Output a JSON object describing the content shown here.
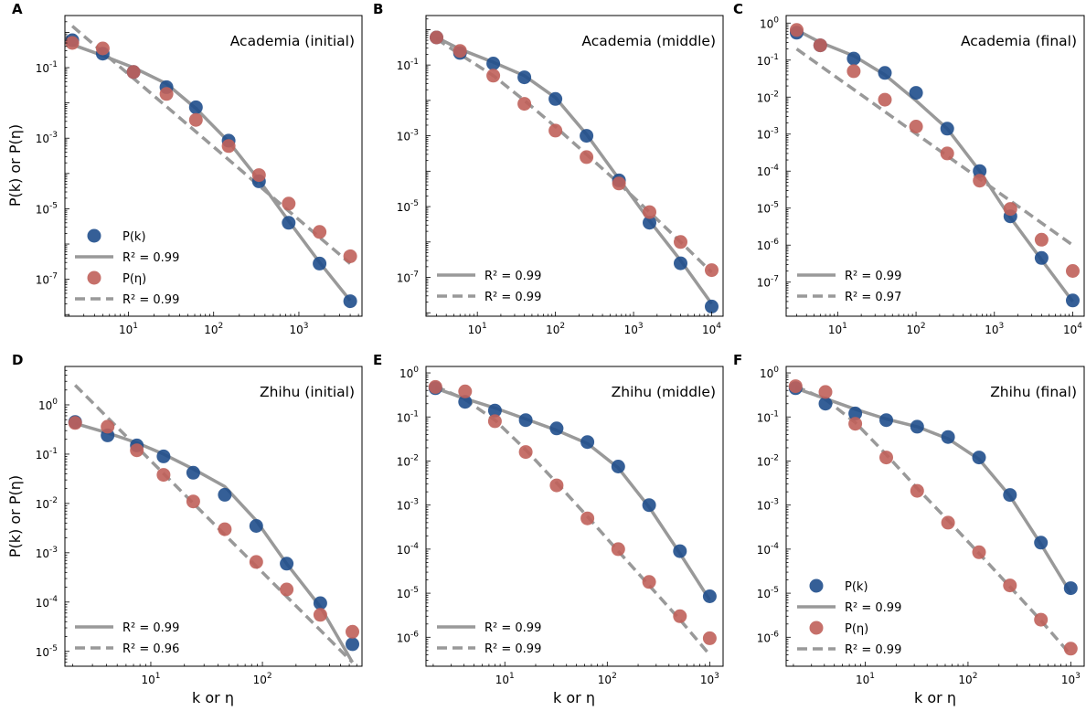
{
  "colors": {
    "pk": "#1f4e8c",
    "peta": "#c0605a",
    "fit": "#999999"
  },
  "x_axis_label": "k or η",
  "y_axis_label": "P(k) or P(η)",
  "chart_data": [
    {
      "type": "scatter",
      "letter": "A",
      "title": "Academia (initial)",
      "xscale": "log",
      "yscale": "log",
      "xlim": [
        1.8,
        5500
      ],
      "ylim": [
        9e-09,
        3
      ],
      "xticks": [
        {
          "label": "10",
          "exp": "1",
          "v": 10
        },
        {
          "label": "10",
          "exp": "2",
          "v": 100
        },
        {
          "label": "10",
          "exp": "3",
          "v": 1000
        }
      ],
      "yticks": [
        {
          "label": "10",
          "exp": "-7",
          "v": 1e-07
        },
        {
          "label": "10",
          "exp": "-5",
          "v": 1e-05
        },
        {
          "label": "10",
          "exp": "-3",
          "v": 0.001
        },
        {
          "label": "10",
          "exp": "-1",
          "v": 0.1
        }
      ],
      "series": [
        {
          "name": "P(k)",
          "color_key": "pk",
          "x": [
            2.2,
            5,
            11.5,
            28,
            62,
            150,
            340,
            760,
            1750,
            4000
          ],
          "y": [
            0.6,
            0.25,
            0.075,
            0.028,
            0.0075,
            0.00085,
            6e-05,
            4e-06,
            2.8e-07,
            2.4e-08
          ]
        },
        {
          "name": "P(η)",
          "color_key": "peta",
          "x": [
            2.2,
            5,
            11.5,
            28,
            62,
            150,
            340,
            760,
            1750,
            4000
          ],
          "y": [
            0.5,
            0.35,
            0.075,
            0.018,
            0.0033,
            0.0006,
            9e-05,
            1.4e-05,
            2.2e-06,
            4.5e-07
          ]
        }
      ],
      "fits": [
        {
          "style": "solid",
          "r2": "0.99",
          "x": [
            2.2,
            5,
            11.5,
            28,
            62,
            150,
            340,
            760,
            1750,
            4000
          ],
          "y": [
            0.45,
            0.22,
            0.1,
            0.035,
            0.007,
            0.0008,
            6.5e-05,
            4.5e-06,
            3e-07,
            2.5e-08
          ]
        },
        {
          "style": "dashed",
          "r2": "0.99",
          "x": [
            2.2,
            4000
          ],
          "y": [
            1.5,
            2.8e-07
          ]
        }
      ],
      "legend": [
        {
          "kind": "marker",
          "color_key": "pk",
          "label": "P(k)"
        },
        {
          "kind": "solid",
          "label": "R² = 0.99"
        },
        {
          "kind": "marker",
          "color_key": "peta",
          "label": "P(η)"
        },
        {
          "kind": "dashed",
          "label": "R² = 0.99"
        }
      ]
    },
    {
      "type": "scatter",
      "letter": "B",
      "title": "Academia (middle)",
      "xscale": "log",
      "yscale": "log",
      "xlim": [
        2.2,
        14000
      ],
      "ylim": [
        8e-09,
        2.5
      ],
      "xticks": [
        {
          "label": "10",
          "exp": "1",
          "v": 10
        },
        {
          "label": "10",
          "exp": "2",
          "v": 100
        },
        {
          "label": "10",
          "exp": "3",
          "v": 1000
        },
        {
          "label": "10",
          "exp": "4",
          "v": 10000
        }
      ],
      "yticks": [
        {
          "label": "10",
          "exp": "-7",
          "v": 1e-07
        },
        {
          "label": "10",
          "exp": "-5",
          "v": 1e-05
        },
        {
          "label": "10",
          "exp": "-3",
          "v": 0.001
        },
        {
          "label": "10",
          "exp": "-1",
          "v": 0.1
        }
      ],
      "series": [
        {
          "name": "P(k)",
          "color_key": "pk",
          "x": [
            3,
            6,
            16,
            40,
            100,
            250,
            650,
            1600,
            4000,
            10000
          ],
          "y": [
            0.6,
            0.22,
            0.11,
            0.045,
            0.011,
            0.001,
            5.5e-05,
            3.5e-06,
            2.5e-07,
            1.5e-08
          ]
        },
        {
          "name": "P(η)",
          "color_key": "peta",
          "x": [
            3,
            6,
            16,
            40,
            100,
            250,
            650,
            1600,
            4000,
            10000
          ],
          "y": [
            0.6,
            0.25,
            0.05,
            0.008,
            0.0014,
            0.00025,
            4.5e-05,
            7e-06,
            1e-06,
            1.6e-07
          ]
        }
      ],
      "fits": [
        {
          "style": "solid",
          "r2": "0.99",
          "x": [
            3,
            6,
            16,
            40,
            100,
            250,
            650,
            1600,
            4000,
            10000
          ],
          "y": [
            0.6,
            0.28,
            0.12,
            0.05,
            0.012,
            0.0011,
            6e-05,
            4e-06,
            3e-07,
            1.8e-08
          ]
        },
        {
          "style": "dashed",
          "r2": "0.99",
          "x": [
            3,
            6,
            16,
            40,
            100,
            250,
            650,
            1600,
            4000,
            10000
          ],
          "y": [
            0.55,
            0.2,
            0.05,
            0.01,
            0.0018,
            0.0003,
            4.5e-05,
            7e-06,
            1e-06,
            1.4e-07
          ]
        }
      ],
      "legend": [
        {
          "kind": "solid",
          "label": "R² = 0.99"
        },
        {
          "kind": "dashed",
          "label": "R² = 0.99"
        }
      ]
    },
    {
      "type": "scatter",
      "letter": "C",
      "title": "Academia (final)",
      "xscale": "log",
      "yscale": "log",
      "xlim": [
        2.2,
        14000
      ],
      "ylim": [
        1.2e-08,
        1.6
      ],
      "xticks": [
        {
          "label": "10",
          "exp": "1",
          "v": 10
        },
        {
          "label": "10",
          "exp": "2",
          "v": 100
        },
        {
          "label": "10",
          "exp": "3",
          "v": 1000
        },
        {
          "label": "10",
          "exp": "4",
          "v": 10000
        }
      ],
      "yticks": [
        {
          "label": "10",
          "exp": "-7",
          "v": 1e-07
        },
        {
          "label": "10",
          "exp": "-6",
          "v": 1e-06
        },
        {
          "label": "10",
          "exp": "-5",
          "v": 1e-05
        },
        {
          "label": "10",
          "exp": "-4",
          "v": 0.0001
        },
        {
          "label": "10",
          "exp": "-3",
          "v": 0.001
        },
        {
          "label": "10",
          "exp": "-2",
          "v": 0.01
        },
        {
          "label": "10",
          "exp": "-1",
          "v": 0.1
        },
        {
          "label": "10",
          "exp": "0",
          "v": 1
        }
      ],
      "series": [
        {
          "name": "P(k)",
          "color_key": "pk",
          "x": [
            3,
            6,
            16,
            40,
            100,
            250,
            650,
            1600,
            4000,
            10000
          ],
          "y": [
            0.55,
            0.25,
            0.11,
            0.045,
            0.013,
            0.0014,
            0.0001,
            6e-06,
            4.5e-07,
            3.2e-08
          ]
        },
        {
          "name": "P(η)",
          "color_key": "peta",
          "x": [
            3,
            6,
            16,
            40,
            100,
            250,
            650,
            1600,
            4000,
            10000
          ],
          "y": [
            0.65,
            0.25,
            0.05,
            0.0085,
            0.0016,
            0.0003,
            5.5e-05,
            9.5e-06,
            1.4e-06,
            2e-07
          ]
        }
      ],
      "fits": [
        {
          "style": "solid",
          "r2": "0.99",
          "x": [
            3,
            6,
            16,
            40,
            100,
            250,
            650,
            1600,
            4000,
            10000
          ],
          "y": [
            0.65,
            0.3,
            0.13,
            0.04,
            0.008,
            0.0014,
            0.0001,
            5.5e-06,
            4e-07,
            3e-08
          ]
        },
        {
          "style": "dashed",
          "r2": "0.97",
          "x": [
            3,
            10000
          ],
          "y": [
            0.2,
            1e-06
          ]
        }
      ],
      "legend": [
        {
          "kind": "solid",
          "label": "R² = 0.99"
        },
        {
          "kind": "dashed",
          "label": "R² = 0.97"
        }
      ]
    },
    {
      "type": "scatter",
      "letter": "D",
      "title": "Zhihu (initial)",
      "xscale": "log",
      "yscale": "log",
      "xlim": [
        1.7,
        780
      ],
      "ylim": [
        5e-06,
        6
      ],
      "xticks": [
        {
          "label": "10",
          "exp": "1",
          "v": 10
        },
        {
          "label": "10",
          "exp": "2",
          "v": 100
        }
      ],
      "yticks": [
        {
          "label": "10",
          "exp": "-5",
          "v": 1e-05
        },
        {
          "label": "10",
          "exp": "-4",
          "v": 0.0001
        },
        {
          "label": "10",
          "exp": "-3",
          "v": 0.001
        },
        {
          "label": "10",
          "exp": "-2",
          "v": 0.01
        },
        {
          "label": "10",
          "exp": "-1",
          "v": 0.1
        },
        {
          "label": "10",
          "exp": "0",
          "v": 1
        }
      ],
      "series": [
        {
          "name": "P(k)",
          "color_key": "pk",
          "x": [
            2.1,
            4.1,
            7.5,
            13,
            24,
            46,
            88,
            165,
            330,
            640
          ],
          "y": [
            0.45,
            0.24,
            0.15,
            0.09,
            0.042,
            0.015,
            0.0035,
            0.0006,
            9.5e-05,
            1.4e-05
          ]
        },
        {
          "name": "P(η)",
          "color_key": "peta",
          "x": [
            2.1,
            4.1,
            7.5,
            13,
            24,
            46,
            88,
            165,
            330,
            640
          ],
          "y": [
            0.43,
            0.36,
            0.12,
            0.038,
            0.011,
            0.003,
            0.00065,
            0.00018,
            5.5e-05,
            2.5e-05
          ]
        }
      ],
      "fits": [
        {
          "style": "solid",
          "r2": "0.99",
          "x": [
            2.1,
            4.1,
            7.5,
            13,
            24,
            46,
            88,
            165,
            330,
            640
          ],
          "y": [
            0.42,
            0.27,
            0.17,
            0.1,
            0.05,
            0.022,
            0.0045,
            0.0006,
            8e-05,
            6e-06
          ]
        },
        {
          "style": "dashed",
          "r2": "0.96",
          "x": [
            2.1,
            640
          ],
          "y": [
            2.5,
            6e-06
          ]
        }
      ],
      "legend": [
        {
          "kind": "solid",
          "label": "R² = 0.99"
        },
        {
          "kind": "dashed",
          "label": "R² = 0.96"
        }
      ]
    },
    {
      "type": "scatter",
      "letter": "E",
      "title": "Zhihu (middle)",
      "xscale": "log",
      "yscale": "log",
      "xlim": [
        1.7,
        1350
      ],
      "ylim": [
        2.2e-07,
        1.4
      ],
      "xticks": [
        {
          "label": "10",
          "exp": "1",
          "v": 10
        },
        {
          "label": "10",
          "exp": "2",
          "v": 100
        },
        {
          "label": "10",
          "exp": "3",
          "v": 1000
        }
      ],
      "yticks": [
        {
          "label": "10",
          "exp": "-6",
          "v": 1e-06
        },
        {
          "label": "10",
          "exp": "-5",
          "v": 1e-05
        },
        {
          "label": "10",
          "exp": "-4",
          "v": 0.0001
        },
        {
          "label": "10",
          "exp": "-3",
          "v": 0.001
        },
        {
          "label": "10",
          "exp": "-2",
          "v": 0.01
        },
        {
          "label": "10",
          "exp": "-1",
          "v": 0.1
        },
        {
          "label": "10",
          "exp": "0",
          "v": 1
        }
      ],
      "series": [
        {
          "name": "P(k)",
          "color_key": "pk",
          "x": [
            2.1,
            4.1,
            8,
            16,
            32,
            64,
            128,
            256,
            512,
            1000
          ],
          "y": [
            0.45,
            0.22,
            0.14,
            0.085,
            0.055,
            0.027,
            0.0075,
            0.001,
            9e-05,
            8.5e-06
          ]
        },
        {
          "name": "P(η)",
          "color_key": "peta",
          "x": [
            2.1,
            4.1,
            8,
            16,
            32,
            64,
            128,
            256,
            512,
            1000
          ],
          "y": [
            0.48,
            0.38,
            0.08,
            0.016,
            0.0028,
            0.0005,
            0.0001,
            1.8e-05,
            3e-06,
            9.5e-07
          ]
        }
      ],
      "fits": [
        {
          "style": "solid",
          "r2": "0.99",
          "x": [
            2.1,
            4.1,
            8,
            16,
            32,
            64,
            128,
            256,
            512,
            1000
          ],
          "y": [
            0.45,
            0.26,
            0.16,
            0.09,
            0.05,
            0.025,
            0.007,
            0.0009,
            8e-05,
            7e-06
          ]
        },
        {
          "style": "dashed",
          "r2": "0.99",
          "x": [
            2.1,
            4.1,
            8,
            16,
            32,
            64,
            128,
            256,
            512,
            1000
          ],
          "y": [
            0.5,
            0.25,
            0.085,
            0.018,
            0.0032,
            0.00055,
            9e-05,
            1.5e-05,
            2.5e-06,
            4e-07
          ]
        }
      ],
      "legend": [
        {
          "kind": "solid",
          "label": "R² = 0.99"
        },
        {
          "kind": "dashed",
          "label": "R² = 0.99"
        }
      ]
    },
    {
      "type": "scatter",
      "letter": "F",
      "title": "Zhihu (final)",
      "xscale": "log",
      "yscale": "log",
      "xlim": [
        1.7,
        1350
      ],
      "ylim": [
        2.2e-07,
        1.4
      ],
      "xticks": [
        {
          "label": "10",
          "exp": "1",
          "v": 10
        },
        {
          "label": "10",
          "exp": "2",
          "v": 100
        },
        {
          "label": "10",
          "exp": "3",
          "v": 1000
        }
      ],
      "yticks": [
        {
          "label": "10",
          "exp": "-6",
          "v": 1e-06
        },
        {
          "label": "10",
          "exp": "-5",
          "v": 1e-05
        },
        {
          "label": "10",
          "exp": "-4",
          "v": 0.0001
        },
        {
          "label": "10",
          "exp": "-3",
          "v": 0.001
        },
        {
          "label": "10",
          "exp": "-2",
          "v": 0.01
        },
        {
          "label": "10",
          "exp": "-1",
          "v": 0.1
        },
        {
          "label": "10",
          "exp": "0",
          "v": 1
        }
      ],
      "series": [
        {
          "name": "P(k)",
          "color_key": "pk",
          "x": [
            2.1,
            4.1,
            8,
            16,
            32,
            64,
            128,
            256,
            512,
            1000
          ],
          "y": [
            0.45,
            0.2,
            0.12,
            0.085,
            0.06,
            0.035,
            0.012,
            0.0017,
            0.00014,
            1.3e-05
          ]
        },
        {
          "name": "P(η)",
          "color_key": "peta",
          "x": [
            2.1,
            4.1,
            8,
            16,
            32,
            64,
            128,
            256,
            512,
            1000
          ],
          "y": [
            0.5,
            0.37,
            0.07,
            0.012,
            0.0021,
            0.0004,
            8.5e-05,
            1.5e-05,
            2.5e-06,
            5.5e-07
          ]
        }
      ],
      "fits": [
        {
          "style": "solid",
          "r2": "0.99",
          "x": [
            2.1,
            4.1,
            8,
            16,
            32,
            64,
            128,
            256,
            512,
            1000
          ],
          "y": [
            0.45,
            0.26,
            0.15,
            0.09,
            0.06,
            0.032,
            0.011,
            0.0016,
            0.00013,
            1e-05
          ]
        },
        {
          "style": "dashed",
          "r2": "0.99",
          "x": [
            2.1,
            4.1,
            8,
            16,
            32,
            64,
            128,
            256,
            512,
            1000
          ],
          "y": [
            0.5,
            0.25,
            0.075,
            0.014,
            0.0024,
            0.00045,
            8e-05,
            1.4e-05,
            2.4e-06,
            4e-07
          ]
        }
      ],
      "legend": [
        {
          "kind": "marker",
          "color_key": "pk",
          "label": "P(k)"
        },
        {
          "kind": "solid",
          "label": "R² = 0.99"
        },
        {
          "kind": "marker",
          "color_key": "peta",
          "label": "P(η)"
        },
        {
          "kind": "dashed",
          "label": "R² = 0.99"
        }
      ]
    }
  ]
}
